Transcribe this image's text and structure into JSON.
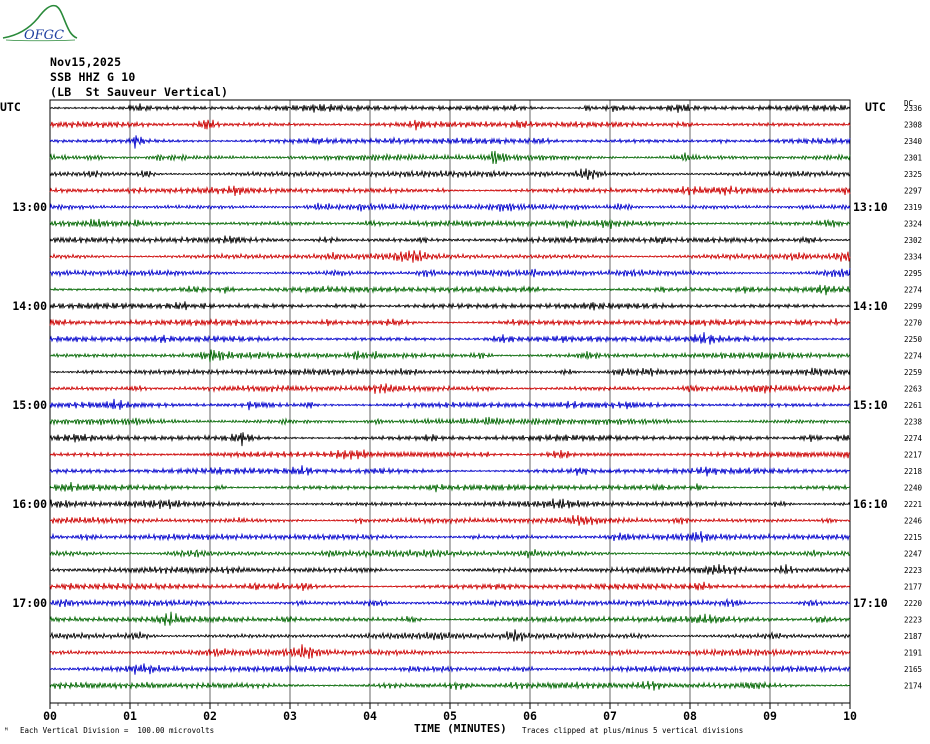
{
  "logo": {
    "text": "OFGC",
    "name": "ofgc-logo"
  },
  "header": {
    "date": "Nov15,2025",
    "station": "SSB HHZ G 10",
    "location": "(LB  St Sauveur Vertical)"
  },
  "left_axis_label": "UTC",
  "right_axis_label": "UTC",
  "dc_label": "DC",
  "x_title": "TIME (MINUTES)",
  "scale_note": "Each Vertical Division =  100.00 microvolts",
  "clip_note": "Traces clipped at plus/minus 5 vertical divisions",
  "corner_mark": "ᴹ",
  "colors": {
    "trace_cycle": [
      "#000000",
      "#cc0000",
      "#0000cc",
      "#006600"
    ],
    "grid": "#000000"
  },
  "chart_data": {
    "type": "line",
    "title": "SSB HHZ G 10",
    "xlabel": "TIME (MINUTES)",
    "xlim": [
      0,
      10
    ],
    "x_ticks": [
      "00",
      "01",
      "02",
      "03",
      "04",
      "05",
      "06",
      "07",
      "08",
      "09",
      "10"
    ],
    "left_hour_labels": [
      {
        "trace_index": 6,
        "label": "13:00"
      },
      {
        "trace_index": 12,
        "label": "14:00"
      },
      {
        "trace_index": 18,
        "label": "15:00"
      },
      {
        "trace_index": 24,
        "label": "16:00"
      },
      {
        "trace_index": 30,
        "label": "17:00"
      }
    ],
    "right_hour_labels": [
      {
        "trace_index": 6,
        "label": "13:10"
      },
      {
        "trace_index": 12,
        "label": "14:10"
      },
      {
        "trace_index": 18,
        "label": "15:10"
      },
      {
        "trace_index": 24,
        "label": "16:10"
      },
      {
        "trace_index": 30,
        "label": "17:10"
      }
    ],
    "trace_count": 36,
    "trace_minutes": 10,
    "dc_offsets": [
      2336,
      2308,
      2340,
      2301,
      2325,
      2297,
      2319,
      2324,
      2302,
      2334,
      2295,
      2274,
      2299,
      2270,
      2250,
      2274,
      2259,
      2263,
      2261,
      2238,
      2274,
      2217,
      2218,
      2240,
      2221,
      2246,
      2215,
      2247,
      2223,
      2177,
      2220,
      2223,
      2187,
      2191,
      2165,
      2174
    ]
  }
}
